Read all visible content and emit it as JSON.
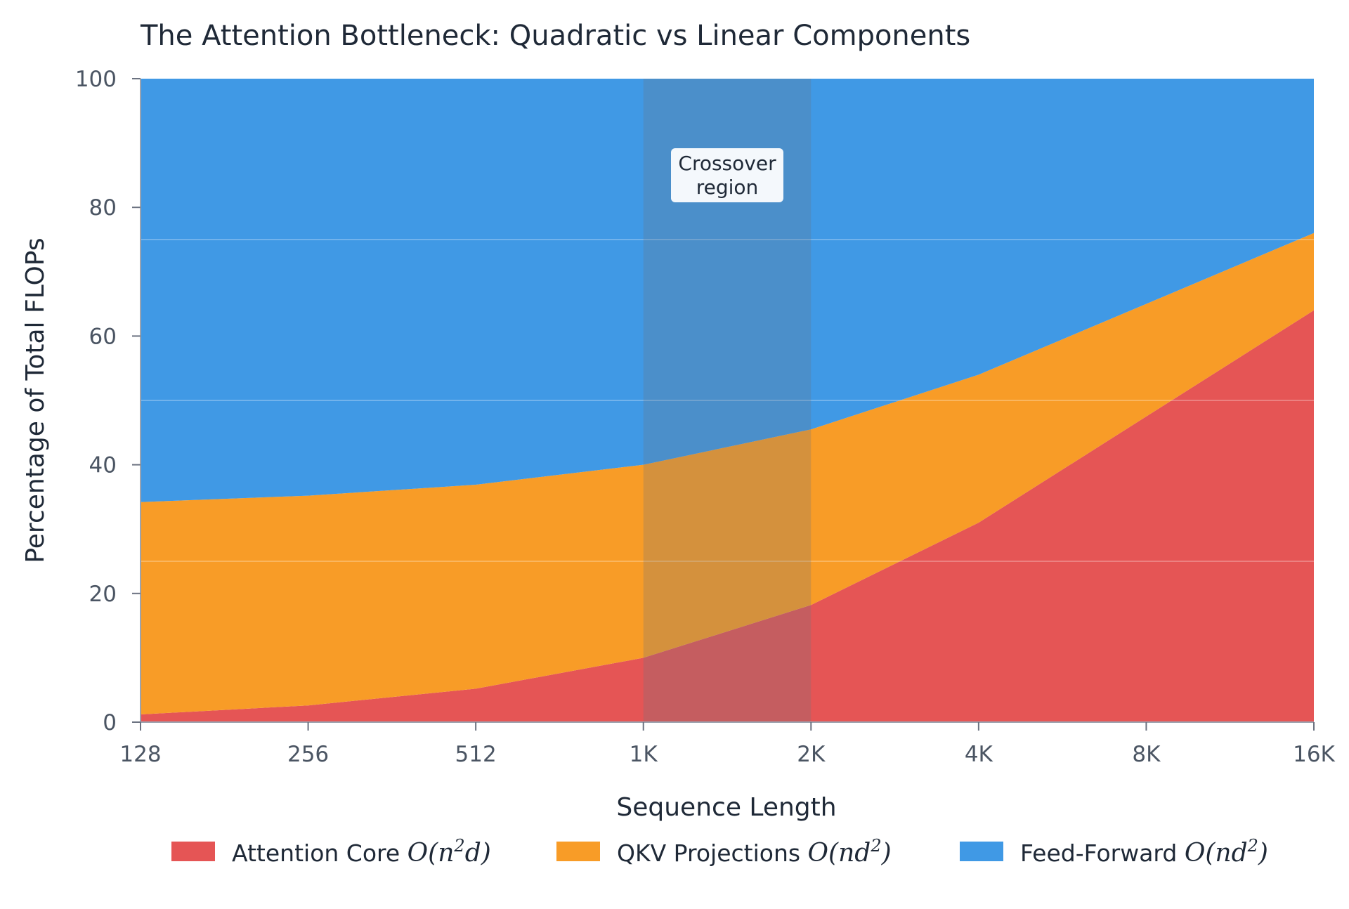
{
  "chart_data": {
    "type": "area",
    "stacked": true,
    "title": "The Attention Bottleneck: Quadratic vs Linear Components",
    "xlabel": "Sequence Length",
    "ylabel": "Percentage of Total FLOPs",
    "x": [
      "128",
      "256",
      "512",
      "1K",
      "2K",
      "4K",
      "8K",
      "16K"
    ],
    "ylim": [
      0,
      100
    ],
    "yticks": [
      "0",
      "20",
      "40",
      "60",
      "80",
      "100"
    ],
    "series": [
      {
        "name": "Attention Core O(n²d)",
        "text": "Attention Core ",
        "math": "O(n",
        "sup": "2",
        "math_end": "d)",
        "color": "#e55555",
        "values": [
          1.2,
          2.6,
          5.2,
          10.0,
          18.2,
          31.0,
          47.5,
          64.0
        ]
      },
      {
        "name": "QKV Projections O(nd²)",
        "text": "QKV Projections ",
        "math": "O(nd",
        "sup": "2",
        "math_end": ")",
        "color": "#f89c27",
        "values": [
          33.0,
          32.6,
          31.7,
          30.0,
          27.3,
          23.0,
          17.5,
          12.0
        ]
      },
      {
        "name": "Feed-Forward O(nd²)",
        "text": "Feed-Forward ",
        "math": "O(nd",
        "sup": "2",
        "math_end": ")",
        "color": "#4099e5",
        "values": [
          65.8,
          64.8,
          63.1,
          60.0,
          54.5,
          46.0,
          35.0,
          24.0
        ]
      }
    ],
    "highlight": {
      "x_from": "1K",
      "x_to": "2K",
      "label_line1": "Crossover",
      "label_line2": "region"
    },
    "grid": {
      "major": false,
      "minor_lines_y": [
        25,
        50,
        75
      ]
    },
    "legend": "bottom"
  }
}
